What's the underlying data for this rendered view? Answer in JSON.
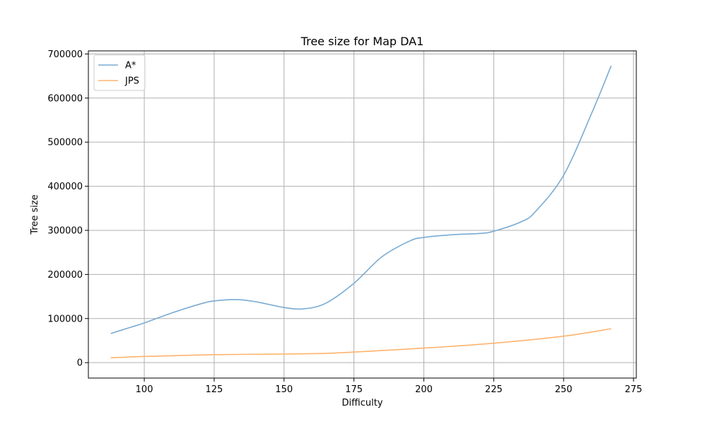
{
  "chart_data": {
    "type": "line",
    "title": "Tree size for Map DA1",
    "xlabel": "Difficulty",
    "ylabel": "Tree size",
    "xlim": [
      80,
      276
    ],
    "ylim": [
      -35000,
      707000
    ],
    "xticks": [
      100,
      125,
      150,
      175,
      200,
      225,
      250,
      275
    ],
    "yticks": [
      0,
      100000,
      200000,
      300000,
      400000,
      500000,
      600000,
      700000
    ],
    "grid": true,
    "legend_position": "top-left",
    "series": [
      {
        "name": "A*",
        "color": "#7aabd2",
        "x": [
          88,
          95,
          100,
          110,
          120,
          125,
          133,
          140,
          150,
          157,
          165,
          175,
          185,
          195,
          200,
          210,
          220,
          225,
          235,
          240,
          250,
          260,
          267
        ],
        "y": [
          66000,
          80000,
          90000,
          113000,
          133000,
          140000,
          143000,
          138000,
          125000,
          122000,
          135000,
          180000,
          240000,
          276000,
          284000,
          290000,
          293000,
          298000,
          320000,
          343000,
          425000,
          565000,
          673000
        ]
      },
      {
        "name": "JPS",
        "color": "#ffb36e",
        "x": [
          88,
          100,
          125,
          150,
          165,
          175,
          200,
          225,
          250,
          267
        ],
        "y": [
          11000,
          14000,
          18000,
          19500,
          21000,
          24000,
          33000,
          44000,
          60000,
          77000
        ]
      }
    ]
  }
}
